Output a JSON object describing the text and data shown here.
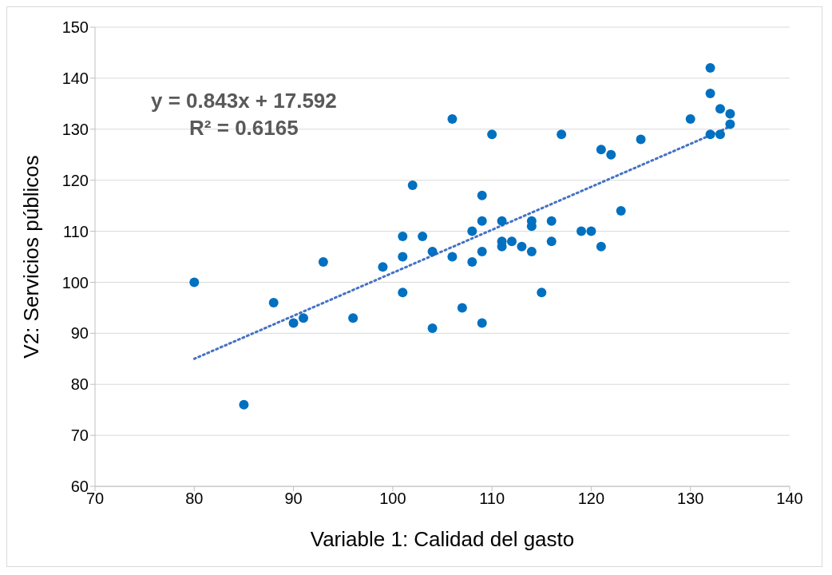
{
  "chart_data": {
    "type": "scatter",
    "xlabel": "Variable 1: Calidad del gasto",
    "ylabel": "V2: Servicios públicos",
    "annotations": [
      "y = 0.843x + 17.592",
      "R² = 0.6165"
    ],
    "series": [
      {
        "type": "scatter",
        "color": "#0070c0",
        "marker": "circle",
        "x": [
          80,
          85,
          88,
          90,
          91,
          93,
          96,
          99,
          101,
          101,
          101,
          102,
          103,
          104,
          104,
          106,
          106,
          107,
          108,
          108,
          109,
          109,
          109,
          109,
          110,
          111,
          111,
          111,
          112,
          113,
          114,
          114,
          114,
          115,
          116,
          116,
          117,
          119,
          120,
          121,
          121,
          122,
          123,
          125,
          130,
          132,
          132,
          132,
          133,
          133,
          134,
          134
        ],
        "values": [
          100,
          76,
          96,
          92,
          93,
          104,
          93,
          103,
          109,
          105,
          98,
          119,
          109,
          106,
          91,
          132,
          105,
          95,
          110,
          104,
          117,
          112,
          106,
          92,
          129,
          112,
          108,
          107,
          108,
          107,
          112,
          111,
          106,
          98,
          112,
          108,
          129,
          110,
          110,
          126,
          107,
          125,
          114,
          128,
          132,
          142,
          137,
          129,
          134,
          129,
          133,
          131
        ]
      },
      {
        "type": "line",
        "color": "#4472c4",
        "line_style": "dotted",
        "marker": "none",
        "x": [
          80,
          134
        ],
        "values": [
          85.0,
          130.5
        ]
      }
    ],
    "xlim": [
      70,
      140
    ],
    "xticks": [
      70,
      80,
      90,
      100,
      110,
      120,
      130,
      140
    ],
    "ylim": [
      60,
      150
    ],
    "yticks": [
      60,
      70,
      80,
      90,
      100,
      110,
      120,
      130,
      140,
      150
    ],
    "grid": "y",
    "legend": false
  }
}
